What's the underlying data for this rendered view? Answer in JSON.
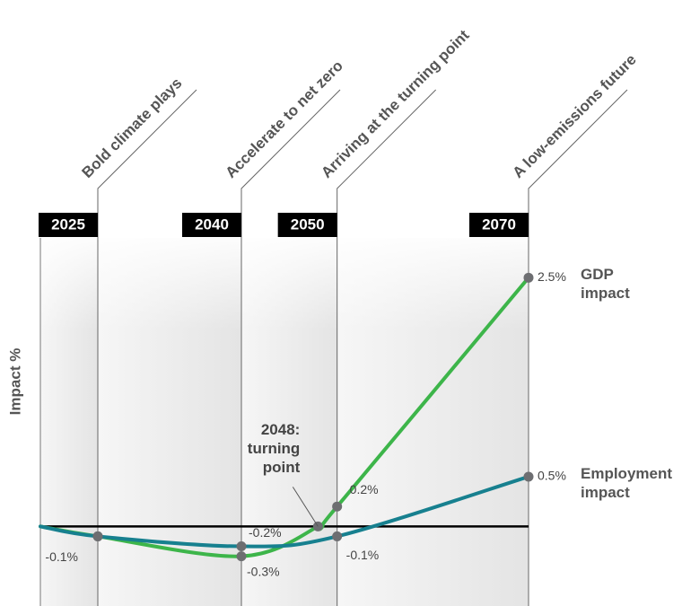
{
  "chart_data": {
    "type": "line",
    "y_label": "Impact %",
    "annotation": "2048: turning point",
    "xlim": [
      2019,
      2070
    ],
    "ylim": [
      -0.8,
      2.9
    ],
    "phases": [
      {
        "year": 2025,
        "label": "Bold climate plays"
      },
      {
        "year": 2040,
        "label": "Accelerate to net zero"
      },
      {
        "year": 2050,
        "label": "Arriving at the turning point"
      },
      {
        "year": 2070,
        "label": "A low-emissions future"
      }
    ],
    "series": [
      {
        "name": "GDP impact",
        "color": "#3db54a",
        "x": [
          2019,
          2025,
          2040,
          2048,
          2050,
          2070
        ],
        "values": [
          0,
          -0.1,
          -0.3,
          0,
          0.2,
          2.5
        ],
        "value_labels": [
          null,
          null,
          "-0.3%",
          null,
          "0.2%",
          "2.5%"
        ]
      },
      {
        "name": "Employment impact",
        "color": "#17808f",
        "x": [
          2019,
          2025,
          2040,
          2050,
          2070
        ],
        "values": [
          0,
          -0.1,
          -0.2,
          -0.1,
          0.5
        ],
        "value_labels": [
          null,
          "-0.1%",
          "-0.2%",
          "-0.1%",
          "0.5%"
        ]
      }
    ]
  }
}
